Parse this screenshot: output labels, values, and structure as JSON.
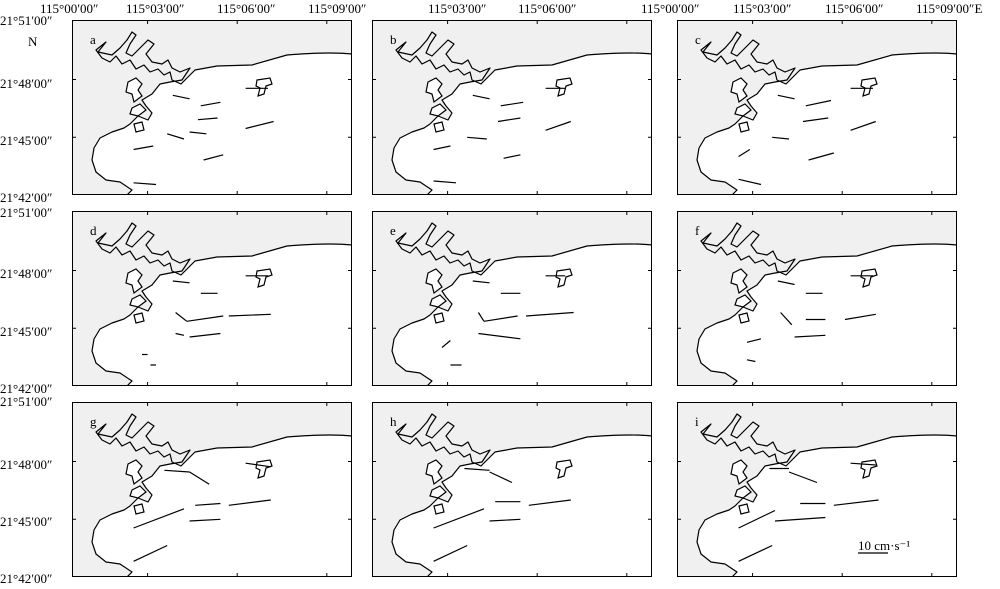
{
  "top_labels_left": [
    "115°00′00″",
    "115°03′00″",
    "115°06′00″",
    "115°09′00″"
  ],
  "top_labels_mid": [
    "115°03′00″",
    "115°06′00″"
  ],
  "top_labels_right": [
    "115°00′00″",
    "115°03′00″",
    "115°06′00″",
    "115°09′00″E"
  ],
  "lat_labels": [
    "21°51′00″",
    "21°48′00″",
    "21°45′00″",
    "21°42′00″"
  ],
  "north_label": "N",
  "panels": [
    {
      "id": "a",
      "label": "a"
    },
    {
      "id": "b",
      "label": "b"
    },
    {
      "id": "c",
      "label": "c"
    },
    {
      "id": "d",
      "label": "d"
    },
    {
      "id": "e",
      "label": "e"
    },
    {
      "id": "f",
      "label": "f"
    },
    {
      "id": "g",
      "label": "g"
    },
    {
      "id": "h",
      "label": "h"
    },
    {
      "id": "i",
      "label": "i"
    }
  ],
  "scale_label": "10 cm·s⁻¹",
  "colors": {
    "land": "#f0f0f0",
    "sea": "#ffffff",
    "line": "#000000"
  },
  "vectors": {
    "a": [
      [
        0.36,
        0.43,
        0.42,
        0.45
      ],
      [
        0.46,
        0.49,
        0.53,
        0.47
      ],
      [
        0.62,
        0.39,
        0.7,
        0.39
      ],
      [
        0.45,
        0.57,
        0.52,
        0.56
      ],
      [
        0.62,
        0.62,
        0.72,
        0.58
      ],
      [
        0.34,
        0.65,
        0.4,
        0.68
      ],
      [
        0.42,
        0.64,
        0.48,
        0.65
      ],
      [
        0.22,
        0.74,
        0.29,
        0.72
      ],
      [
        0.47,
        0.8,
        0.54,
        0.77
      ],
      [
        0.22,
        0.93,
        0.3,
        0.94
      ]
    ],
    "b": [
      [
        0.36,
        0.43,
        0.42,
        0.45
      ],
      [
        0.46,
        0.49,
        0.54,
        0.47
      ],
      [
        0.62,
        0.39,
        0.69,
        0.39
      ],
      [
        0.45,
        0.58,
        0.53,
        0.56
      ],
      [
        0.62,
        0.63,
        0.71,
        0.58
      ],
      [
        0.34,
        0.67,
        0.41,
        0.68
      ],
      [
        0.22,
        0.74,
        0.28,
        0.72
      ],
      [
        0.47,
        0.79,
        0.53,
        0.77
      ],
      [
        0.22,
        0.92,
        0.3,
        0.93
      ]
    ],
    "c": [
      [
        0.36,
        0.43,
        0.42,
        0.45
      ],
      [
        0.46,
        0.49,
        0.55,
        0.46
      ],
      [
        0.62,
        0.39,
        0.7,
        0.39
      ],
      [
        0.45,
        0.58,
        0.54,
        0.56
      ],
      [
        0.62,
        0.63,
        0.71,
        0.58
      ],
      [
        0.34,
        0.67,
        0.4,
        0.68
      ],
      [
        0.22,
        0.78,
        0.26,
        0.74
      ],
      [
        0.47,
        0.8,
        0.56,
        0.76
      ],
      [
        0.22,
        0.91,
        0.3,
        0.94
      ]
    ],
    "d": [
      [
        0.36,
        0.4,
        0.42,
        0.41
      ],
      [
        0.46,
        0.47,
        0.52,
        0.47
      ],
      [
        0.62,
        0.37,
        0.7,
        0.37
      ],
      [
        0.37,
        0.58,
        0.41,
        0.63
      ],
      [
        0.41,
        0.63,
        0.54,
        0.6
      ],
      [
        0.56,
        0.6,
        0.71,
        0.59
      ],
      [
        0.37,
        0.7,
        0.4,
        0.71
      ],
      [
        0.42,
        0.72,
        0.53,
        0.7
      ],
      [
        0.25,
        0.82,
        0.27,
        0.82
      ],
      [
        0.28,
        0.88,
        0.3,
        0.88
      ]
    ],
    "e": [
      [
        0.36,
        0.4,
        0.42,
        0.41
      ],
      [
        0.46,
        0.47,
        0.53,
        0.47
      ],
      [
        0.62,
        0.37,
        0.69,
        0.37
      ],
      [
        0.38,
        0.58,
        0.4,
        0.63
      ],
      [
        0.4,
        0.63,
        0.52,
        0.6
      ],
      [
        0.55,
        0.6,
        0.72,
        0.58
      ],
      [
        0.38,
        0.7,
        0.53,
        0.73
      ],
      [
        0.25,
        0.78,
        0.28,
        0.74
      ],
      [
        0.28,
        0.88,
        0.32,
        0.88
      ]
    ],
    "f": [
      [
        0.36,
        0.4,
        0.42,
        0.42
      ],
      [
        0.46,
        0.47,
        0.52,
        0.47
      ],
      [
        0.62,
        0.37,
        0.7,
        0.37
      ],
      [
        0.37,
        0.58,
        0.41,
        0.65
      ],
      [
        0.46,
        0.62,
        0.53,
        0.62
      ],
      [
        0.6,
        0.62,
        0.71,
        0.59
      ],
      [
        0.25,
        0.75,
        0.3,
        0.73
      ],
      [
        0.42,
        0.72,
        0.53,
        0.71
      ],
      [
        0.25,
        0.85,
        0.28,
        0.86
      ]
    ],
    "g": [
      [
        0.33,
        0.39,
        0.42,
        0.4
      ],
      [
        0.42,
        0.4,
        0.49,
        0.47
      ],
      [
        0.62,
        0.35,
        0.71,
        0.37
      ],
      [
        0.44,
        0.59,
        0.53,
        0.58
      ],
      [
        0.56,
        0.59,
        0.71,
        0.56
      ],
      [
        0.22,
        0.72,
        0.4,
        0.61
      ],
      [
        0.42,
        0.68,
        0.53,
        0.67
      ],
      [
        0.22,
        0.91,
        0.34,
        0.82
      ]
    ],
    "h": [
      [
        0.33,
        0.38,
        0.42,
        0.39
      ],
      [
        0.42,
        0.4,
        0.5,
        0.46
      ],
      [
        0.44,
        0.57,
        0.53,
        0.57
      ],
      [
        0.56,
        0.59,
        0.71,
        0.56
      ],
      [
        0.22,
        0.72,
        0.4,
        0.61
      ],
      [
        0.42,
        0.68,
        0.53,
        0.67
      ],
      [
        0.22,
        0.91,
        0.34,
        0.82
      ]
    ],
    "i": [
      [
        0.33,
        0.38,
        0.4,
        0.38
      ],
      [
        0.4,
        0.4,
        0.5,
        0.46
      ],
      [
        0.62,
        0.35,
        0.71,
        0.36
      ],
      [
        0.44,
        0.58,
        0.53,
        0.58
      ],
      [
        0.56,
        0.59,
        0.72,
        0.56
      ],
      [
        0.22,
        0.72,
        0.35,
        0.62
      ],
      [
        0.35,
        0.68,
        0.53,
        0.66
      ],
      [
        0.22,
        0.91,
        0.34,
        0.82
      ]
    ]
  }
}
